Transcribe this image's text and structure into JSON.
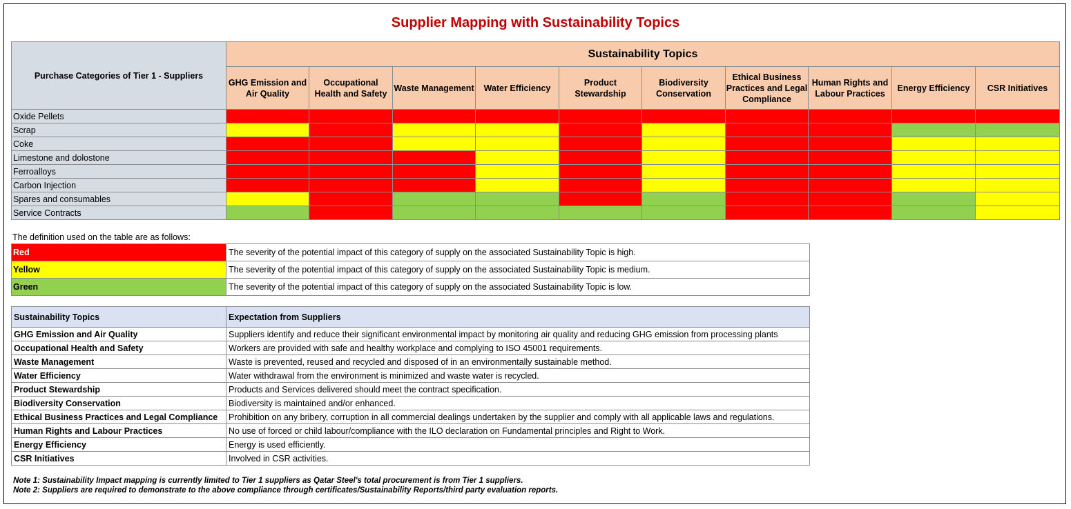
{
  "title": "Supplier Mapping with Sustainability Topics",
  "matrix": {
    "category_header": "Purchase Categories of Tier 1 - Suppliers",
    "topics_header": "Sustainability Topics",
    "topics": [
      "GHG Emission and Air Quality",
      "Occupational Health and Safety",
      "Waste Management",
      "Water Efficiency",
      "Product Stewardship",
      "Biodiversity Conservation",
      "Ethical Business Practices and Legal Compliance",
      "Human Rights and Labour Practices",
      "Energy Efficiency",
      "CSR Initiatives"
    ],
    "rows": [
      {
        "category": "Oxide Pellets",
        "ratings": [
          "red",
          "red",
          "red",
          "red",
          "red",
          "red",
          "red",
          "red",
          "red",
          "red"
        ]
      },
      {
        "category": "Scrap",
        "ratings": [
          "yellow",
          "red",
          "yellow",
          "yellow",
          "red",
          "yellow",
          "red",
          "red",
          "green",
          "green"
        ]
      },
      {
        "category": "Coke",
        "ratings": [
          "red",
          "red",
          "yellow",
          "yellow",
          "red",
          "yellow",
          "red",
          "red",
          "yellow",
          "yellow"
        ]
      },
      {
        "category": "Limestone and dolostone",
        "ratings": [
          "red",
          "red",
          "red",
          "yellow",
          "red",
          "yellow",
          "red",
          "red",
          "yellow",
          "yellow"
        ]
      },
      {
        "category": "Ferroalloys",
        "ratings": [
          "red",
          "red",
          "red",
          "yellow",
          "red",
          "yellow",
          "red",
          "red",
          "yellow",
          "yellow"
        ]
      },
      {
        "category": "Carbon Injection",
        "ratings": [
          "red",
          "red",
          "red",
          "yellow",
          "red",
          "yellow",
          "red",
          "red",
          "yellow",
          "yellow"
        ]
      },
      {
        "category": "Spares and consumables",
        "ratings": [
          "yellow",
          "red",
          "green",
          "green",
          "red",
          "green",
          "red",
          "red",
          "green",
          "yellow"
        ]
      },
      {
        "category": "Service Contracts",
        "ratings": [
          "green",
          "red",
          "green",
          "green",
          "green",
          "green",
          "red",
          "red",
          "green",
          "yellow"
        ]
      }
    ]
  },
  "definition_intro": "The definition used on the table are as follows:",
  "legend": [
    {
      "name": "Red",
      "color": "#ff0000",
      "description": "The severity of the potential impact of this category of supply on the associated Sustainability Topic is high."
    },
    {
      "name": "Yellow",
      "color": "#ffff00",
      "description": "The severity of the potential impact of this category of supply on the associated Sustainability Topic is medium."
    },
    {
      "name": "Green",
      "color": "#92d050",
      "description": "The severity of the potential impact of this category of supply on the associated Sustainability Topic is low."
    }
  ],
  "expectations": {
    "header_topic": "Sustainability Topics",
    "header_expectation": "Expectation from Suppliers",
    "rows": [
      {
        "topic": "GHG Emission and Air Quality",
        "expectation": "Suppliers identify and reduce their significant environmental impact by monitoring air quality and reducing GHG emission from processing plants"
      },
      {
        "topic": "Occupational Health and Safety",
        "expectation": "Workers are provided with safe and healthy workplace and complying to ISO 45001 requirements."
      },
      {
        "topic": "Waste Management",
        "expectation": "Waste is prevented, reused and recycled and disposed of in an environmentally sustainable method."
      },
      {
        "topic": "Water Efficiency",
        "expectation": "Water withdrawal from the environment is minimized and waste water is recycled."
      },
      {
        "topic": "Product Stewardship",
        "expectation": "Products and Services delivered should meet the contract specification."
      },
      {
        "topic": "Biodiversity Conservation",
        "expectation": "Biodiversity is maintained and/or enhanced."
      },
      {
        "topic": "Ethical Business Practices and Legal Compliance",
        "expectation": "Prohibition on any bribery, corruption in all commercial dealings undertaken by the supplier and comply with all applicable laws and regulations."
      },
      {
        "topic": "Human Rights and Labour Practices",
        "expectation": "No use of forced or child labour/compliance with the ILO declaration on Fundamental principles and Right to Work."
      },
      {
        "topic": "Energy Efficiency",
        "expectation": "Energy is used efficiently."
      },
      {
        "topic": "CSR Initiatives",
        "expectation": "Involved in CSR activities."
      }
    ]
  },
  "notes": [
    "Note 1: Sustainability Impact mapping is currently limited to Tier 1 suppliers as Qatar Steel's total procurement is from Tier 1 suppliers.",
    "Note 2: Suppliers are required to demonstrate to the above compliance through certificates/Sustainability Reports/third party evaluation reports."
  ]
}
